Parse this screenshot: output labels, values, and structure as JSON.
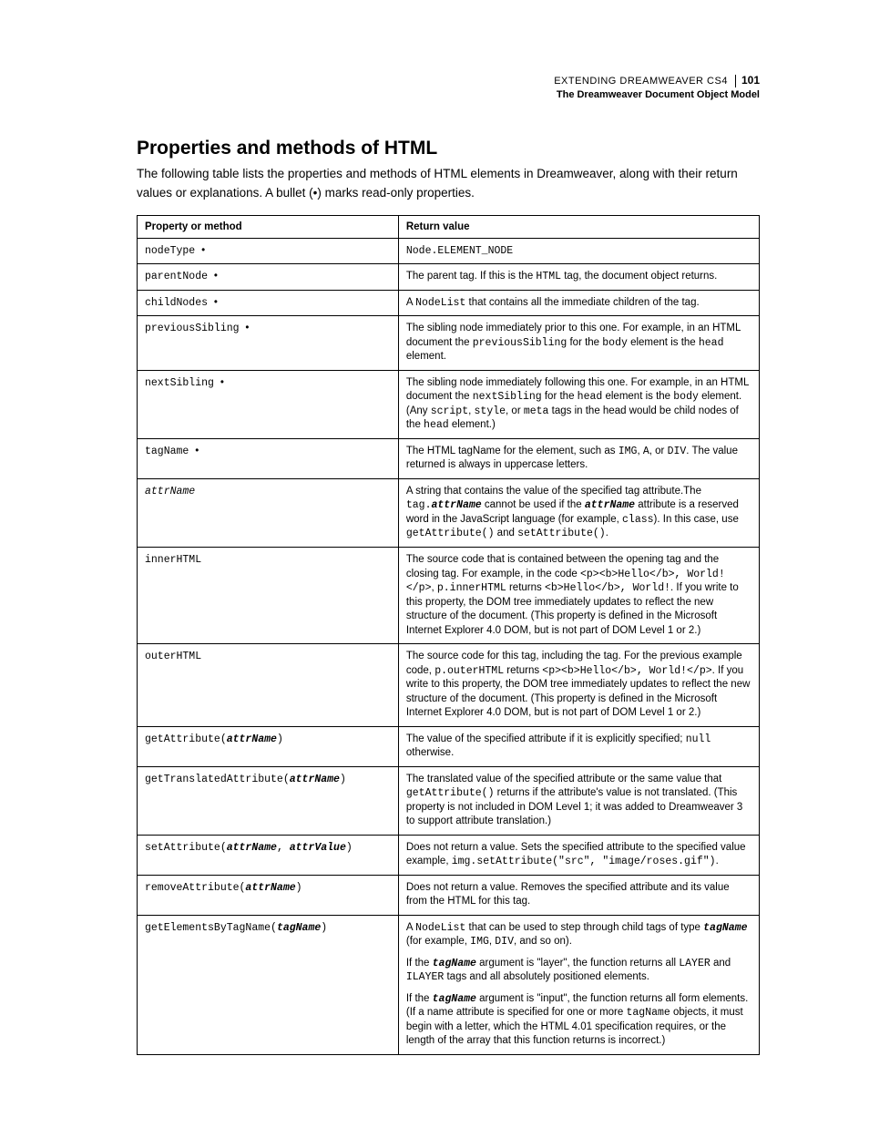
{
  "header": {
    "doc_title": "EXTENDING DREAMWEAVER CS4",
    "page_number": "101",
    "chapter": "The Dreamweaver Document Object Model"
  },
  "section": {
    "heading": "Properties and methods of HTML",
    "intro": "The following table lists the properties and methods of HTML elements in Dreamweaver, along with their return values or explanations. A bullet (•) marks read-only properties."
  },
  "table": {
    "col1_header": "Property or method",
    "col2_header": "Return value",
    "rows": [
      {
        "prop_html": "nodeType <span class=\"bullet\">•</span>",
        "value_html": "<span class=\"mono\">Node.ELEMENT_NODE</span>"
      },
      {
        "prop_html": "parentNode <span class=\"bullet\">•</span>",
        "value_html": "The parent tag. If this is the <span class=\"mono\">HTML</span> tag, the document object returns."
      },
      {
        "prop_html": "childNodes <span class=\"bullet\">•</span>",
        "value_html": "A <span class=\"mono\">NodeList</span> that contains all the immediate children of the tag."
      },
      {
        "prop_html": "previousSibling <span class=\"bullet\">•</span>",
        "value_html": "The sibling node immediately prior to this one. For example, in an HTML document the <span class=\"mono\">previousSibling</span> for the <span class=\"mono\">body</span> element is the <span class=\"mono\">head</span> element."
      },
      {
        "prop_html": "nextSibling <span class=\"bullet\">•</span>",
        "value_html": "The sibling node immediately following this one. For example, in an HTML document the <span class=\"mono\">nextSibling</span> for the <span class=\"mono\">head</span> element is the <span class=\"mono\">body</span> element. (Any <span class=\"mono\">script</span>, <span class=\"mono\">style</span>, or <span class=\"mono\">meta</span> tags in the head would be child nodes of the <span class=\"mono\">head</span> element.)"
      },
      {
        "prop_html": "tagName <span class=\"bullet\">•</span>",
        "value_html": "The HTML tagName for the element, such as <span class=\"mono\">IMG</span>, <span class=\"mono\">A</span>, or <span class=\"mono\">DIV</span>. The value returned is always in uppercase letters."
      },
      {
        "prop_html": "<i>attrName</i>",
        "value_html": "A string that contains the value of the specified tag attribute.The <span class=\"mono\">tag.</span><span class=\"bi\">attrName</span> cannot be used if the <span class=\"bi\">attrName</span> attribute is a reserved word in the JavaScript language (for example, <span class=\"mono\">class</span>). In this case, use <span class=\"mono\">getAttribute()</span> and <span class=\"mono\">setAttribute()</span>."
      },
      {
        "prop_html": "innerHTML",
        "value_html": "The source code that is contained between the opening tag and the closing tag. For example, in the code <span class=\"mono\">&lt;p&gt;&lt;b&gt;Hello&lt;/b&gt;, World!&lt;/p&gt;</span>, <span class=\"mono\">p.innerHTML</span> returns <span class=\"mono\">&lt;b&gt;Hello&lt;/b&gt;, World!</span>. If you write to this property, the DOM tree immediately updates to reflect the new structure of the document. (This property is defined in the Microsoft Internet Explorer 4.0 DOM, but is not part of DOM Level 1 or 2.)"
      },
      {
        "prop_html": "outerHTML",
        "value_html": "The source code for this tag, including the tag. For the previous example code, <span class=\"mono\">p.outerHTML</span> returns <span class=\"mono\">&lt;p&gt;&lt;b&gt;Hello&lt;/b&gt;, World!&lt;/p&gt;</span>. If you write to this property, the DOM tree immediately updates to reflect the new structure of the document. (This property is defined in the Microsoft Internet Explorer 4.0 DOM, but is not part of DOM Level 1 or 2.)"
      },
      {
        "prop_html": "getAttribute(<span class=\"bi\">attrName</span>)",
        "value_html": "The value of the specified attribute if it is explicitly specified; <span class=\"mono\">null</span> otherwise."
      },
      {
        "prop_html": "getTranslatedAttribute(<span class=\"bi\">attrName</span>)",
        "value_html": "The translated value of the specified attribute or the same value that <span class=\"mono\">getAttribute()</span> returns if the attribute's value is not translated. (This property is not included in DOM Level 1; it was added to Dreamweaver 3 to support attribute translation.)"
      },
      {
        "prop_html": "setAttribute(<span class=\"bi\">attrName</span>, <span class=\"bi\">attrValue</span>)",
        "value_html": "Does not return a value. Sets the specified attribute to the specified value example, <span class=\"mono\">img.setAttribute(\"src\", \"image/roses.gif\")</span>."
      },
      {
        "prop_html": "removeAttribute(<span class=\"bi\">attrName</span>)",
        "value_html": "Does not return a value. Removes the specified attribute and its value from the HTML for this tag."
      },
      {
        "prop_html": "getElementsByTagName(<span class=\"bi\">tagName</span>)",
        "value_html": "<div class=\"value-block\">A <span class=\"mono\">NodeList</span> that can be used to step through child tags of type <span class=\"bi\">tagName</span> (for example, <span class=\"mono\">IMG</span>, <span class=\"mono\">DIV</span>, and so on).</div><div class=\"value-block\">If the <span class=\"bi\">tagName</span> argument is \"layer\", the function returns all <span class=\"mono\">LAYER</span> and <span class=\"mono\">ILAYER</span> tags and all absolutely positioned elements.</div><div class=\"value-block\">If the <span class=\"bi\">tagName</span> argument is \"input\", the function returns all form elements. (If a name attribute is specified for one or more <span class=\"mono\">tagName</span> objects, it must begin with a letter, which the HTML 4.01 specification requires, or the length of the array that this function returns is incorrect.)</div>"
      }
    ]
  }
}
